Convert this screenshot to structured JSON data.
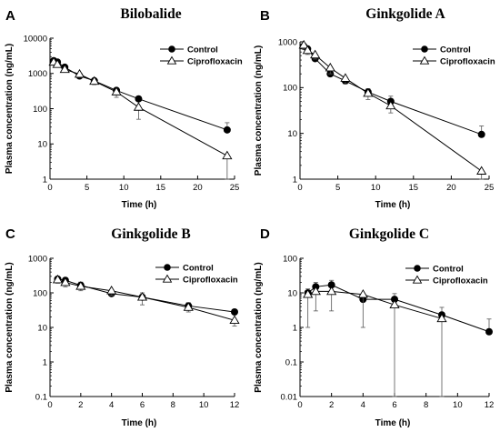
{
  "chart_data": [
    {
      "type": "line",
      "panel_label": "A",
      "title": "Bilobalide",
      "xlabel": "Time (h)",
      "ylabel": "Plasma concentration (ng/mL)",
      "yscale": "log",
      "xlim": [
        0,
        25
      ],
      "ylim": [
        1,
        10000
      ],
      "xticks": [
        "0",
        "5",
        "10",
        "15",
        "20",
        "25"
      ],
      "yticks": [
        "1",
        "10",
        "100",
        "1000",
        "10000"
      ],
      "grid": false,
      "legend": "top-right",
      "series": [
        {
          "name": "Control",
          "marker": "filled-circle",
          "x": [
            0.5,
            1,
            2,
            4,
            6,
            9,
            12,
            24
          ],
          "y": [
            2300,
            2100,
            1500,
            850,
            620,
            330,
            190,
            25
          ],
          "err": [
            250,
            250,
            200,
            150,
            90,
            60,
            30,
            15
          ]
        },
        {
          "name": "Ciprofloxacin",
          "marker": "open-triangle",
          "x": [
            0.5,
            1,
            2,
            4,
            6,
            9,
            12,
            24
          ],
          "y": [
            2100,
            1800,
            1300,
            950,
            600,
            300,
            110,
            4.6
          ],
          "err": [
            300,
            250,
            200,
            180,
            120,
            90,
            60,
            6
          ]
        }
      ]
    },
    {
      "type": "line",
      "panel_label": "B",
      "title": "Ginkgolide A",
      "xlabel": "Time (h)",
      "ylabel": "Plasma concentration (ng/mL)",
      "yscale": "log",
      "xlim": [
        0,
        25
      ],
      "ylim": [
        1,
        1000
      ],
      "xticks": [
        "0",
        "5",
        "10",
        "15",
        "20",
        "25"
      ],
      "yticks": [
        "1",
        "10",
        "100",
        "1000"
      ],
      "grid": false,
      "legend": "top-right",
      "series": [
        {
          "name": "Control",
          "marker": "filled-circle",
          "x": [
            0.5,
            1,
            2,
            4,
            6,
            9,
            12,
            24
          ],
          "y": [
            800,
            700,
            430,
            200,
            140,
            80,
            50,
            9.5
          ],
          "err": [
            120,
            100,
            80,
            60,
            30,
            15,
            15,
            5
          ]
        },
        {
          "name": "Ciprofloxacin",
          "marker": "open-triangle",
          "x": [
            0.5,
            1,
            2,
            4,
            6,
            9,
            12,
            24
          ],
          "y": [
            850,
            650,
            520,
            270,
            160,
            75,
            40,
            1.5
          ],
          "err": [
            150,
            120,
            100,
            70,
            40,
            20,
            12,
            2
          ]
        }
      ]
    },
    {
      "type": "line",
      "panel_label": "C",
      "title": "Ginkgolide B",
      "xlabel": "Time (h)",
      "ylabel": "Plasma concentration (ng/mL)",
      "yscale": "log",
      "xlim": [
        0,
        12
      ],
      "ylim": [
        0.1,
        1000
      ],
      "xticks": [
        "0",
        "2",
        "4",
        "6",
        "8",
        "10",
        "12"
      ],
      "yticks": [
        "0.1",
        "1",
        "10",
        "100",
        "1000"
      ],
      "grid": false,
      "legend": "top-right",
      "series": [
        {
          "name": "Control",
          "marker": "filled-circle",
          "x": [
            0.5,
            1,
            2,
            4,
            6,
            9,
            12
          ],
          "y": [
            250,
            230,
            165,
            95,
            75,
            42,
            28
          ],
          "err": [
            40,
            40,
            40,
            30,
            25,
            10,
            5
          ]
        },
        {
          "name": "Ciprofloxacin",
          "marker": "open-triangle",
          "x": [
            0.5,
            1,
            2,
            4,
            6,
            9,
            12
          ],
          "y": [
            240,
            200,
            155,
            115,
            75,
            38,
            16
          ],
          "err": [
            50,
            50,
            40,
            30,
            30,
            10,
            5
          ]
        }
      ]
    },
    {
      "type": "line",
      "panel_label": "D",
      "title": "Ginkgolide C",
      "xlabel": "Time (h)",
      "ylabel": "Plasma concentration (ng/mL)",
      "yscale": "log",
      "xlim": [
        0,
        12
      ],
      "ylim": [
        0.01,
        100
      ],
      "xticks": [
        "0",
        "2",
        "4",
        "6",
        "8",
        "10",
        "12"
      ],
      "yticks": [
        "0.01",
        "0.1",
        "1",
        "10",
        "100"
      ],
      "grid": false,
      "legend": "top-right",
      "series": [
        {
          "name": "Control",
          "marker": "filled-circle",
          "x": [
            0.5,
            1,
            2,
            4,
            6,
            9,
            12
          ],
          "y": [
            10,
            15,
            17,
            6.5,
            6.5,
            2.3,
            0.75
          ],
          "err": [
            3,
            5,
            6,
            3,
            3,
            1.5,
            1
          ]
        },
        {
          "name": "Ciprofloxacin",
          "marker": "open-triangle",
          "x": [
            0.5,
            1,
            2,
            4,
            6,
            9
          ],
          "y": [
            9,
            11,
            11,
            9,
            4.5,
            1.8
          ],
          "err": [
            8,
            8,
            8,
            8,
            9,
            4
          ]
        }
      ]
    }
  ]
}
